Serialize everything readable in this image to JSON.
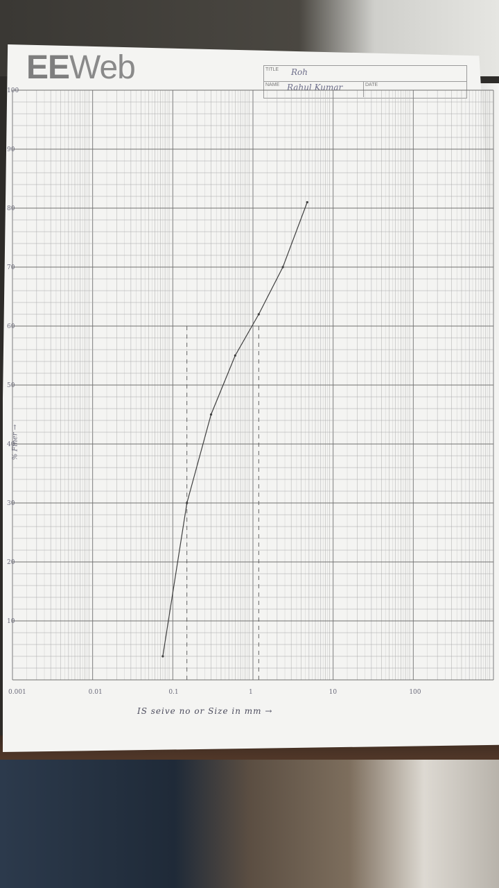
{
  "header": {
    "logo_text_bold": "EE",
    "logo_text_rest": "Web",
    "title_label": "TITLE",
    "title_value": "Roh",
    "name_label": "NAME",
    "name_value": "Rahul Kumar",
    "date_label": "DATE",
    "date_value": ""
  },
  "chart_data": {
    "type": "line",
    "title": "",
    "xlabel": "IS seive no or Size in mm →",
    "ylabel": "% Finer →",
    "x_scale": "log",
    "xlim": [
      0.001,
      1000
    ],
    "ylim": [
      0,
      100
    ],
    "x_ticks": [
      "0.001",
      "0.01",
      "0.1",
      "1",
      "10",
      "100"
    ],
    "y_ticks": [
      "10",
      "20",
      "30",
      "40",
      "50",
      "60",
      "70",
      "80",
      "90",
      "100"
    ],
    "grid": true,
    "series": [
      {
        "x": [
          0.075,
          0.15,
          0.3,
          0.6,
          1.18,
          2.36,
          4.75
        ],
        "y": [
          4,
          30,
          45,
          55,
          62,
          70,
          81
        ]
      }
    ],
    "reference_lines_x": [
      0.15,
      1.18
    ]
  },
  "colors": {
    "grid_major": "#7d7d7d",
    "grid_minor": "#b7b7b7",
    "curve": "#3f3f3f",
    "pencil": "#6a6a7a",
    "ink_blue": "#6d6e8a"
  }
}
